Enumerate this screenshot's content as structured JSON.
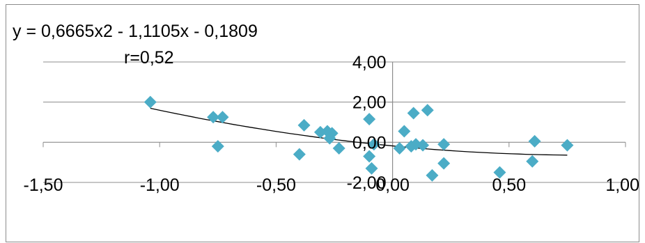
{
  "chart_data": {
    "type": "scatter",
    "equation": "y = 0,6665x2 - 1,1105x - 0,1809",
    "r_label": "r=0,52",
    "xlim": [
      -1.5,
      1.0
    ],
    "ylim": [
      -2.0,
      4.0
    ],
    "x_ticks": [
      -1.5,
      -1.0,
      -0.5,
      0.0,
      0.5,
      1.0
    ],
    "x_tick_labels": [
      "-1,50",
      "-1,00",
      "-0,50",
      "0,00",
      "0,50",
      "1,00"
    ],
    "y_ticks": [
      -2.0,
      0.0,
      2.0,
      4.0
    ],
    "y_tick_labels": [
      "-2,00",
      "0,00",
      "2,00",
      "4,00"
    ],
    "grid": true,
    "marker_color": "#4bacc6",
    "trendline_color": "#000000",
    "trendline": {
      "a": 0.6665,
      "b": -1.1105,
      "c": -0.1809,
      "x_range": [
        -1.04,
        0.75
      ]
    },
    "points": [
      {
        "x": -1.04,
        "y": 2.0
      },
      {
        "x": -0.77,
        "y": 1.25
      },
      {
        "x": -0.73,
        "y": 1.25
      },
      {
        "x": -0.75,
        "y": -0.2
      },
      {
        "x": -0.38,
        "y": 0.85
      },
      {
        "x": -0.4,
        "y": -0.6
      },
      {
        "x": -0.31,
        "y": 0.5
      },
      {
        "x": -0.28,
        "y": 0.55
      },
      {
        "x": -0.26,
        "y": 0.45
      },
      {
        "x": -0.27,
        "y": 0.2
      },
      {
        "x": -0.23,
        "y": -0.3
      },
      {
        "x": -0.1,
        "y": 1.15
      },
      {
        "x": -0.08,
        "y": -0.1
      },
      {
        "x": -0.1,
        "y": -0.7
      },
      {
        "x": -0.09,
        "y": -1.3
      },
      {
        "x": 0.03,
        "y": -0.3
      },
      {
        "x": 0.05,
        "y": 0.55
      },
      {
        "x": 0.08,
        "y": -0.2
      },
      {
        "x": 0.1,
        "y": -0.1
      },
      {
        "x": 0.09,
        "y": 1.45
      },
      {
        "x": 0.15,
        "y": 1.6
      },
      {
        "x": 0.13,
        "y": -0.15
      },
      {
        "x": 0.17,
        "y": -1.65
      },
      {
        "x": 0.22,
        "y": -0.1
      },
      {
        "x": 0.22,
        "y": -1.05
      },
      {
        "x": 0.46,
        "y": -1.5
      },
      {
        "x": 0.61,
        "y": 0.05
      },
      {
        "x": 0.6,
        "y": -0.95
      },
      {
        "x": 0.75,
        "y": -0.15
      }
    ]
  }
}
